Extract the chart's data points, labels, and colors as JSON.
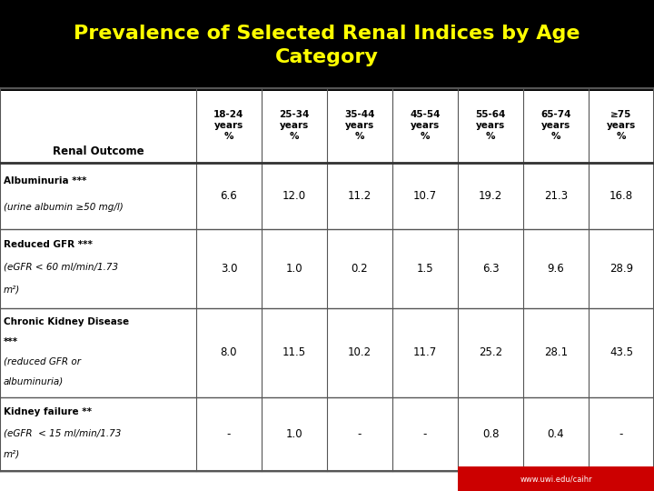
{
  "title": "Prevalence of Selected Renal Indices by Age\nCategory",
  "title_color": "#FFFF00",
  "title_bg": "#000000",
  "background_color": "#FFFFFF",
  "col_headers": [
    "18-24\nyears\n%",
    "25-34\nyears\n%",
    "35-44\nyears\n%",
    "45-54\nyears\n%",
    "55-64\nyears\n%",
    "65-74\nyears\n%",
    "≥75\nyears\n%"
  ],
  "row_header_label": "Renal Outcome",
  "rows": [
    {
      "label": "Albuminuria ***\n(urine albumin ≥50 mg/l)",
      "values": [
        "6.6",
        "12.0",
        "11.2",
        "10.7",
        "19.2",
        "21.3",
        "16.8"
      ],
      "label_bold": true,
      "label_italic_parts": [
        1
      ]
    },
    {
      "label": "Reduced GFR ***\n(eGFR < 60 ml/min/1.73\nm²)",
      "values": [
        "3.0",
        "1.0",
        "0.2",
        "1.5",
        "6.3",
        "9.6",
        "28.9"
      ],
      "label_bold": true,
      "label_italic_parts": [
        1,
        2
      ]
    },
    {
      "label": "Chronic Kidney Disease\n***\n(reduced GFR or\nalbuminuria)",
      "values": [
        "8.0",
        "11.5",
        "10.2",
        "11.7",
        "25.2",
        "28.1",
        "43.5"
      ],
      "label_bold": true,
      "label_italic_parts": [
        2,
        3
      ]
    },
    {
      "label": "Kidney failure **\n(eGFR  < 15 ml/min/1.73\nm²)",
      "values": [
        "-",
        "1.0",
        "-",
        "-",
        "0.8",
        "0.4",
        "-"
      ],
      "label_bold": true,
      "label_italic_parts": [
        1,
        2
      ]
    }
  ],
  "footer": "www.uwi.edu/caihr",
  "footer_bg": "#CC0000",
  "footer_color": "#FFFFFF"
}
